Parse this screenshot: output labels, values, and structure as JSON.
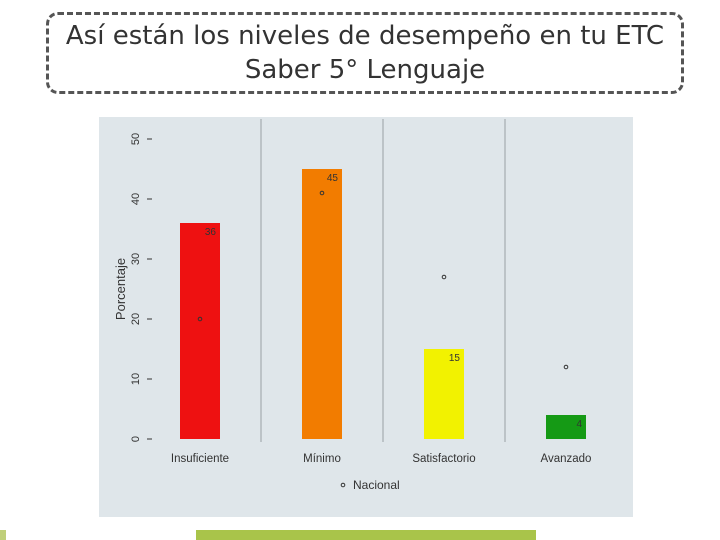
{
  "slide": {
    "title_line1": "Así están los niveles de desempeño en tu ETC",
    "title_line2": "Saber 5° Lenguaje"
  },
  "chart_data": {
    "type": "bar",
    "title": "",
    "xlabel": "",
    "ylabel": "Porcentaje",
    "ylim": [
      0,
      50
    ],
    "yticks": [
      "0",
      "10",
      "20",
      "30",
      "40",
      "50"
    ],
    "categories": [
      "Insuficiente",
      "Mínimo",
      "Satisfactorio",
      "Avanzado"
    ],
    "series": [
      {
        "values": [
          36,
          45,
          15,
          4
        ],
        "labels": [
          "36",
          "45",
          "15",
          "4"
        ],
        "colors": [
          "#ee1111",
          "#f27c00",
          "#f2f200",
          "#159a15"
        ]
      },
      {
        "name": "Nacional",
        "type": "scatter",
        "values": [
          20,
          41,
          27,
          12
        ]
      }
    ],
    "grid": "vertical",
    "legend": "bottom",
    "panel_color": "#dfe6ea",
    "grid_color": "#9aa0a4"
  }
}
